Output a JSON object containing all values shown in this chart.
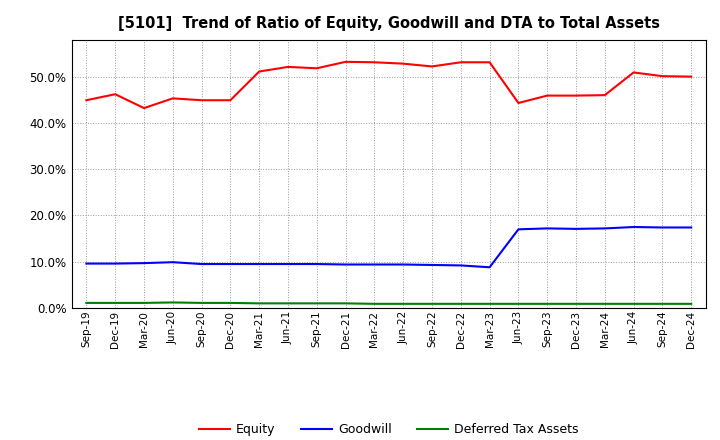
{
  "title": "[5101]  Trend of Ratio of Equity, Goodwill and DTA to Total Assets",
  "x_labels": [
    "Sep-19",
    "Dec-19",
    "Mar-20",
    "Jun-20",
    "Sep-20",
    "Dec-20",
    "Mar-21",
    "Jun-21",
    "Sep-21",
    "Dec-21",
    "Mar-22",
    "Jun-22",
    "Sep-22",
    "Dec-22",
    "Mar-23",
    "Jun-23",
    "Sep-23",
    "Dec-23",
    "Mar-24",
    "Jun-24",
    "Sep-24",
    "Dec-24"
  ],
  "equity": [
    0.449,
    0.462,
    0.432,
    0.453,
    0.449,
    0.449,
    0.511,
    0.521,
    0.518,
    0.532,
    0.531,
    0.528,
    0.522,
    0.531,
    0.531,
    0.443,
    0.459,
    0.459,
    0.46,
    0.509,
    0.501,
    0.5
  ],
  "goodwill": [
    0.096,
    0.096,
    0.097,
    0.099,
    0.095,
    0.095,
    0.095,
    0.095,
    0.095,
    0.094,
    0.094,
    0.094,
    0.093,
    0.092,
    0.088,
    0.17,
    0.172,
    0.171,
    0.172,
    0.175,
    0.174,
    0.174
  ],
  "dta": [
    0.011,
    0.011,
    0.011,
    0.012,
    0.011,
    0.011,
    0.01,
    0.01,
    0.01,
    0.01,
    0.009,
    0.009,
    0.009,
    0.009,
    0.009,
    0.009,
    0.009,
    0.009,
    0.009,
    0.009,
    0.009,
    0.009
  ],
  "equity_color": "#ff0000",
  "goodwill_color": "#0000ff",
  "dta_color": "#008000",
  "ylim": [
    0.0,
    0.58
  ],
  "yticks": [
    0.0,
    0.1,
    0.2,
    0.3,
    0.4,
    0.5
  ],
  "background_color": "#ffffff",
  "grid_color": "#999999",
  "legend_labels": [
    "Equity",
    "Goodwill",
    "Deferred Tax Assets"
  ]
}
